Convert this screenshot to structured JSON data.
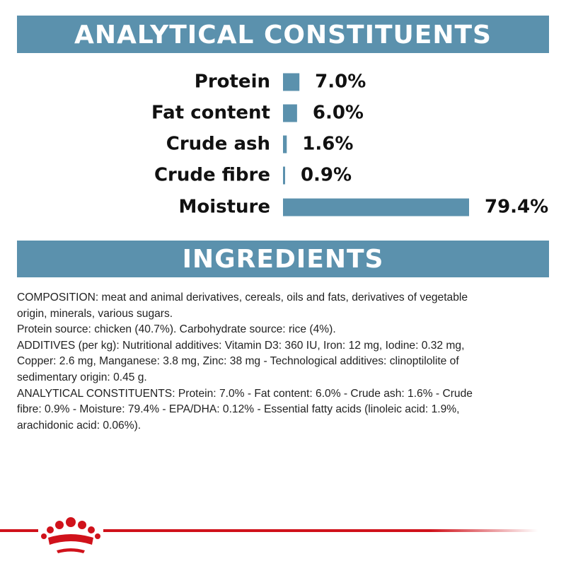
{
  "chart_data": {
    "type": "bar",
    "orientation": "horizontal",
    "title": "ANALYTICAL CONSTITUENTS",
    "categories": [
      "Protein",
      "Fat content",
      "Crude ash",
      "Crude fibre",
      "Moisture"
    ],
    "values": [
      7.0,
      6.0,
      1.6,
      0.9,
      79.4
    ],
    "value_labels": [
      "7.0%",
      "6.0%",
      "1.6%",
      "0.9%",
      "79.4%"
    ],
    "color": "#5b91ad"
  },
  "ingredients": {
    "title": "INGREDIENTS",
    "lines": [
      "COMPOSITION: meat and animal derivatives, cereals, oils and fats, derivatives of vegetable",
      "origin, minerals, various sugars.",
      "Protein source: chicken (40.7%). Carbohydrate source: rice (4%).",
      "ADDITIVES (per kg): Nutritional additives: Vitamin D3: 360 IU, Iron: 12 mg, Iodine: 0.32 mg,",
      "Copper: 2.6 mg, Manganese: 3.8 mg, Zinc: 38 mg - Technological additives: clinoptilolite of",
      "sedimentary origin: 0.45 g.",
      "ANALYTICAL CONSTITUENTS: Protein: 7.0% - Fat content: 6.0% - Crude ash: 1.6% - Crude",
      "fibre: 0.9% - Moisture: 79.4% - EPA/DHA: 0.12% - Essential fatty acids (linoleic acid: 1.9%,",
      "arachidonic acid: 0.06%)."
    ]
  }
}
